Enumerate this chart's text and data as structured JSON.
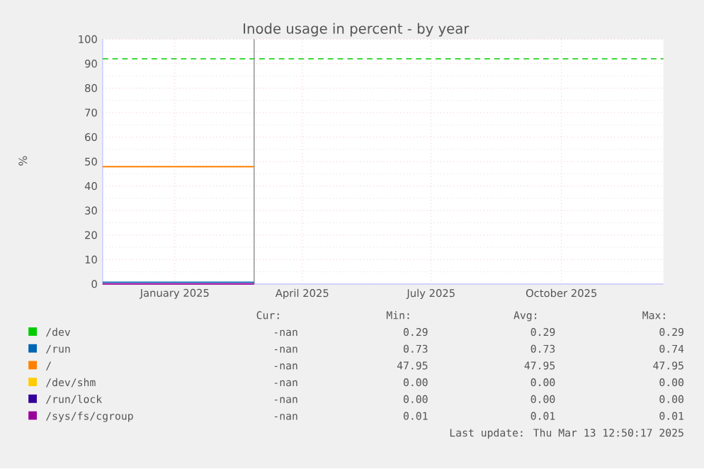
{
  "chart_data": {
    "type": "line",
    "title": "Inode usage in percent - by year",
    "ylabel": "%",
    "x": [
      "2024-11-26",
      "2025-03-13"
    ],
    "series": [
      {
        "name": "/dev",
        "color": "#00cc00",
        "values": [
          null,
          null
        ]
      },
      {
        "name": "/run",
        "color": "#0066b3",
        "values": [
          0.73,
          0.73
        ]
      },
      {
        "name": "/",
        "color": "#ff8000",
        "values": [
          47.95,
          47.95
        ]
      },
      {
        "name": "/dev/shm",
        "color": "#ffcc00",
        "values": [
          null,
          null
        ]
      },
      {
        "name": "/run/lock",
        "color": "#330099",
        "values": [
          null,
          null
        ]
      },
      {
        "name": "/sys/fs/cgroup",
        "color": "#990099",
        "values": [
          0.01,
          0.01
        ]
      }
    ],
    "xlim": [
      "2024-11-26",
      "2025-12-27"
    ],
    "xticks": [
      {
        "value": "2025-01-16",
        "label": "January 2025"
      },
      {
        "value": "2025-04-16",
        "label": "April 2025"
      },
      {
        "value": "2025-07-16",
        "label": "July 2025"
      },
      {
        "value": "2025-10-16",
        "label": "October 2025"
      }
    ],
    "ylim": [
      0,
      100
    ],
    "yticks": [
      0,
      10,
      20,
      30,
      40,
      50,
      60,
      70,
      80,
      90,
      100
    ],
    "ref_lines": [
      {
        "axis": "y",
        "value": 92,
        "color": "#00cc00",
        "line_style": "dashed"
      },
      {
        "axis": "x",
        "value": "2025-03-13",
        "color": "#999999",
        "line_style": "solid"
      }
    ],
    "grid": true,
    "legend": "bottom",
    "marker": "none",
    "line_style": "solid",
    "annotations": [
      "Cur:",
      "Min:",
      "Avg:",
      "Max:",
      "-nan",
      "0.29",
      "0.29",
      "0.29",
      "-nan",
      "0.73",
      "0.73",
      "0.74",
      "-nan",
      "47.95",
      "47.95",
      "47.95",
      "-nan",
      "0.00",
      "0.00",
      "0.00",
      "-nan",
      "0.00",
      "0.00",
      "0.00",
      "-nan",
      "0.01",
      "0.01",
      "0.01",
      "Last update: Thu Mar 13 12:50:17 2025"
    ]
  }
}
